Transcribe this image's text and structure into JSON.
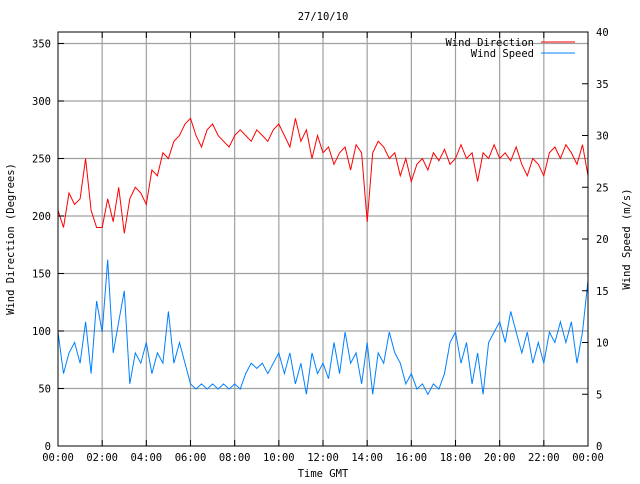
{
  "chart_data": {
    "type": "line",
    "title": "27/10/10",
    "xlabel": "Time GMT",
    "ylabel": "Wind Direction (Degrees)",
    "y2label": "Wind Speed (m/s)",
    "xlim": [
      0,
      24
    ],
    "ylim": [
      0,
      360
    ],
    "y2lim": [
      0,
      40
    ],
    "grid": true,
    "legend_position": "top-right",
    "x_tick_labels": [
      "00:00",
      "02:00",
      "04:00",
      "06:00",
      "08:00",
      "10:00",
      "12:00",
      "14:00",
      "16:00",
      "18:00",
      "20:00",
      "22:00",
      "00:00"
    ],
    "y_tick_values": [
      0,
      50,
      100,
      150,
      200,
      250,
      300,
      350
    ],
    "y2_tick_values": [
      0,
      5,
      10,
      15,
      20,
      25,
      30,
      35,
      40
    ],
    "x_step_hours": 0.25,
    "series": [
      {
        "name": "Wind Direction",
        "axis": "left",
        "color": "#ff0000",
        "values": [
          205,
          190,
          220,
          210,
          215,
          250,
          205,
          190,
          190,
          215,
          195,
          225,
          185,
          215,
          225,
          220,
          210,
          240,
          235,
          255,
          250,
          265,
          270,
          280,
          285,
          270,
          260,
          275,
          280,
          270,
          265,
          260,
          270,
          275,
          270,
          265,
          275,
          270,
          265,
          275,
          280,
          270,
          260,
          285,
          265,
          275,
          250,
          270,
          255,
          260,
          245,
          255,
          260,
          240,
          262,
          255,
          195,
          255,
          265,
          260,
          250,
          255,
          235,
          250,
          230,
          245,
          250,
          240,
          255,
          248,
          258,
          245,
          250,
          262,
          250,
          255,
          230,
          255,
          250,
          262,
          250,
          255,
          248,
          260,
          245,
          235,
          250,
          245,
          235,
          255,
          260,
          250,
          262,
          255,
          245,
          262,
          235
        ]
      },
      {
        "name": "Wind Speed",
        "axis": "right",
        "color": "#0080ff",
        "values": [
          11,
          7,
          9,
          10,
          8,
          12,
          7,
          14,
          11,
          18,
          9,
          12,
          15,
          6,
          9,
          8,
          10,
          7,
          9,
          8,
          13,
          8,
          10,
          8,
          6,
          5.5,
          6,
          5.5,
          6,
          5.5,
          6,
          5.5,
          6,
          5.5,
          7,
          8,
          7.5,
          8,
          7,
          8,
          9,
          7,
          9,
          6,
          8,
          5,
          9,
          7,
          8,
          6.5,
          10,
          7,
          11,
          8,
          9,
          6,
          10,
          5,
          9,
          8,
          11,
          9,
          8,
          6,
          7,
          5.5,
          6,
          5,
          6,
          5.5,
          7,
          10,
          11,
          8,
          10,
          6,
          9,
          5,
          10,
          11,
          12,
          10,
          13,
          11,
          9,
          11,
          8,
          10,
          8,
          11,
          10,
          12,
          10,
          12,
          8,
          11,
          16
        ]
      }
    ]
  }
}
